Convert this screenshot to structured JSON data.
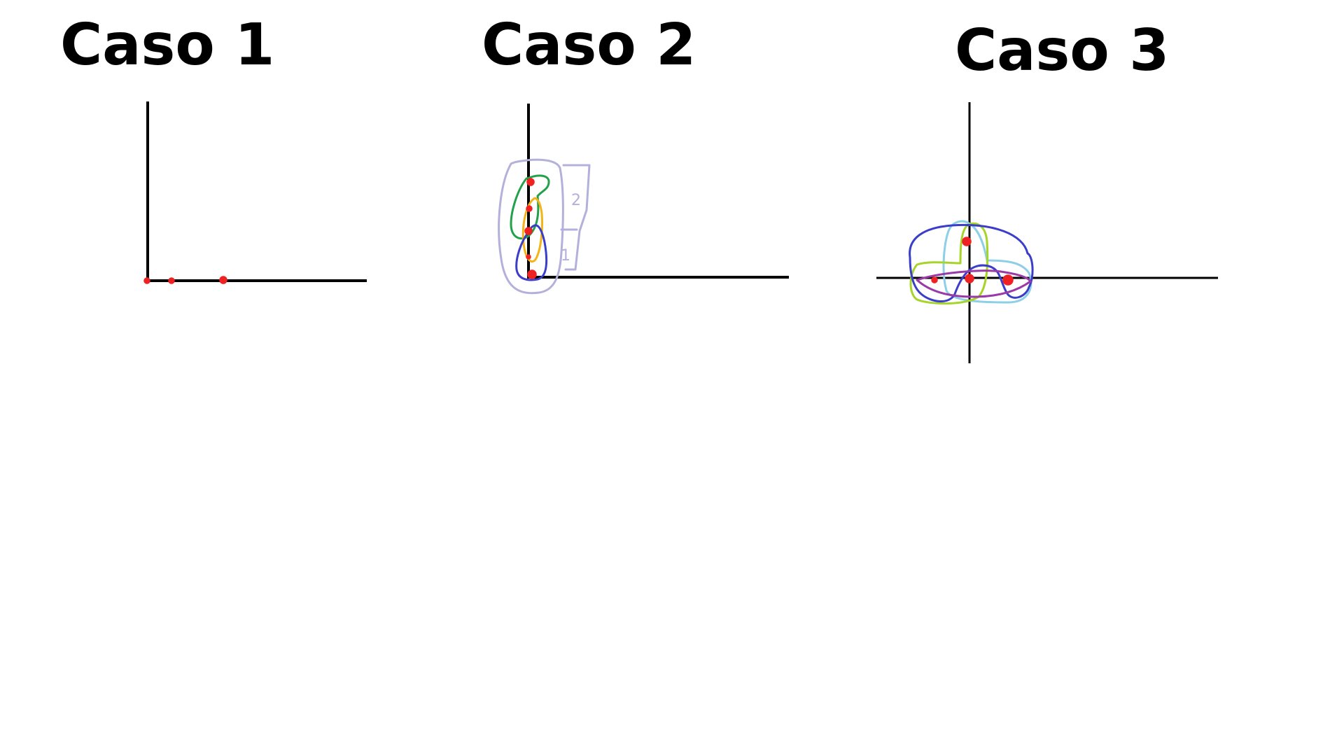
{
  "cases": [
    {
      "title": "Caso 1"
    },
    {
      "title": "Caso 2",
      "distance_labels": [
        "2",
        "1"
      ]
    },
    {
      "title": "Caso 3"
    }
  ],
  "colors": {
    "axis": "#000000",
    "points": "#ee2222",
    "lavender": "#b4b0dc",
    "green": "#22a04a",
    "orange": "#f2b418",
    "blue": "#3a3ec8",
    "lightblue": "#8ccfe6",
    "lime": "#a6d42a",
    "purple": "#9a3aa6"
  }
}
